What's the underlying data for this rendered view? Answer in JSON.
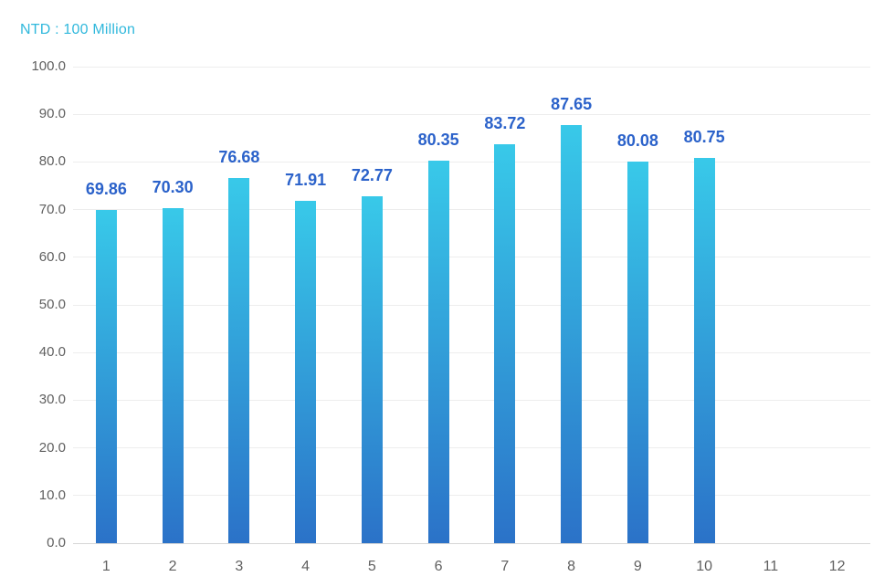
{
  "chart_data": {
    "type": "bar",
    "title": "",
    "unit_label": "NTD : 100 Million",
    "xlabel": "",
    "ylabel": "",
    "categories": [
      "1",
      "2",
      "3",
      "4",
      "5",
      "6",
      "7",
      "8",
      "9",
      "10",
      "11",
      "12"
    ],
    "values": [
      69.86,
      70.3,
      76.68,
      71.91,
      72.77,
      80.35,
      83.72,
      87.65,
      80.08,
      80.75,
      null,
      null
    ],
    "value_labels": [
      "69.86",
      "70.30",
      "76.68",
      "71.91",
      "72.77",
      "80.35",
      "83.72",
      "87.65",
      "80.08",
      "80.75",
      "",
      ""
    ],
    "ylim": [
      0,
      100
    ],
    "ytick_step": 10,
    "y_tick_labels": [
      "0.0",
      "10.0",
      "20.0",
      "30.0",
      "40.0",
      "50.0",
      "60.0",
      "70.0",
      "80.0",
      "90.0",
      "100.0"
    ],
    "grid": true,
    "legend_position": "none",
    "colors": {
      "bar_gradient_top": "#38c9e9",
      "bar_gradient_bottom": "#2b72c8",
      "value_label": "#2b62ca",
      "unit_label": "#30b8dc",
      "axis_text": "#606060",
      "gridline": "#ededed",
      "axis_line": "#d6d6d6",
      "background": "#ffffff"
    }
  }
}
